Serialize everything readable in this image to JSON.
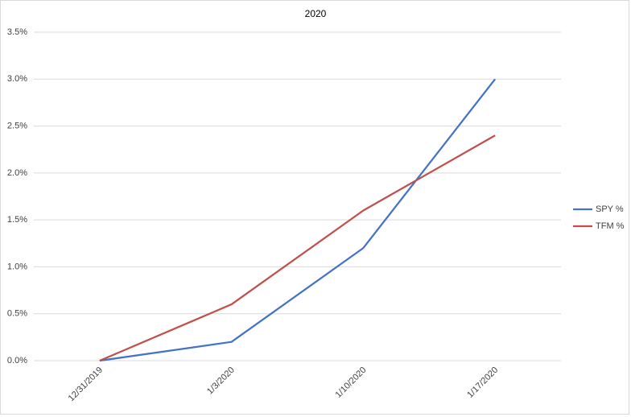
{
  "chart_data": {
    "type": "line",
    "title": "2020",
    "categories": [
      "12/31/2019",
      "1/3/2020",
      "1/10/2020",
      "1/17/2020"
    ],
    "series": [
      {
        "name": "SPY %",
        "color": "#4472c4",
        "values": [
          0,
          0.2,
          1.2,
          3.0
        ]
      },
      {
        "name": "TFM %",
        "color": "#c0504d",
        "values": [
          0,
          0.6,
          1.6,
          2.4
        ]
      }
    ],
    "ylim": [
      0,
      3.5
    ],
    "yticks": [
      {
        "value": 0,
        "label": "0.0%"
      },
      {
        "value": 0.5,
        "label": "0.5%"
      },
      {
        "value": 1.0,
        "label": "1.0%"
      },
      {
        "value": 1.5,
        "label": "1.5%"
      },
      {
        "value": 2.0,
        "label": "2.0%"
      },
      {
        "value": 2.5,
        "label": "2.5%"
      },
      {
        "value": 3.0,
        "label": "3.0%"
      },
      {
        "value": 3.5,
        "label": "3.5%"
      }
    ],
    "grid": true,
    "legend": "right"
  }
}
